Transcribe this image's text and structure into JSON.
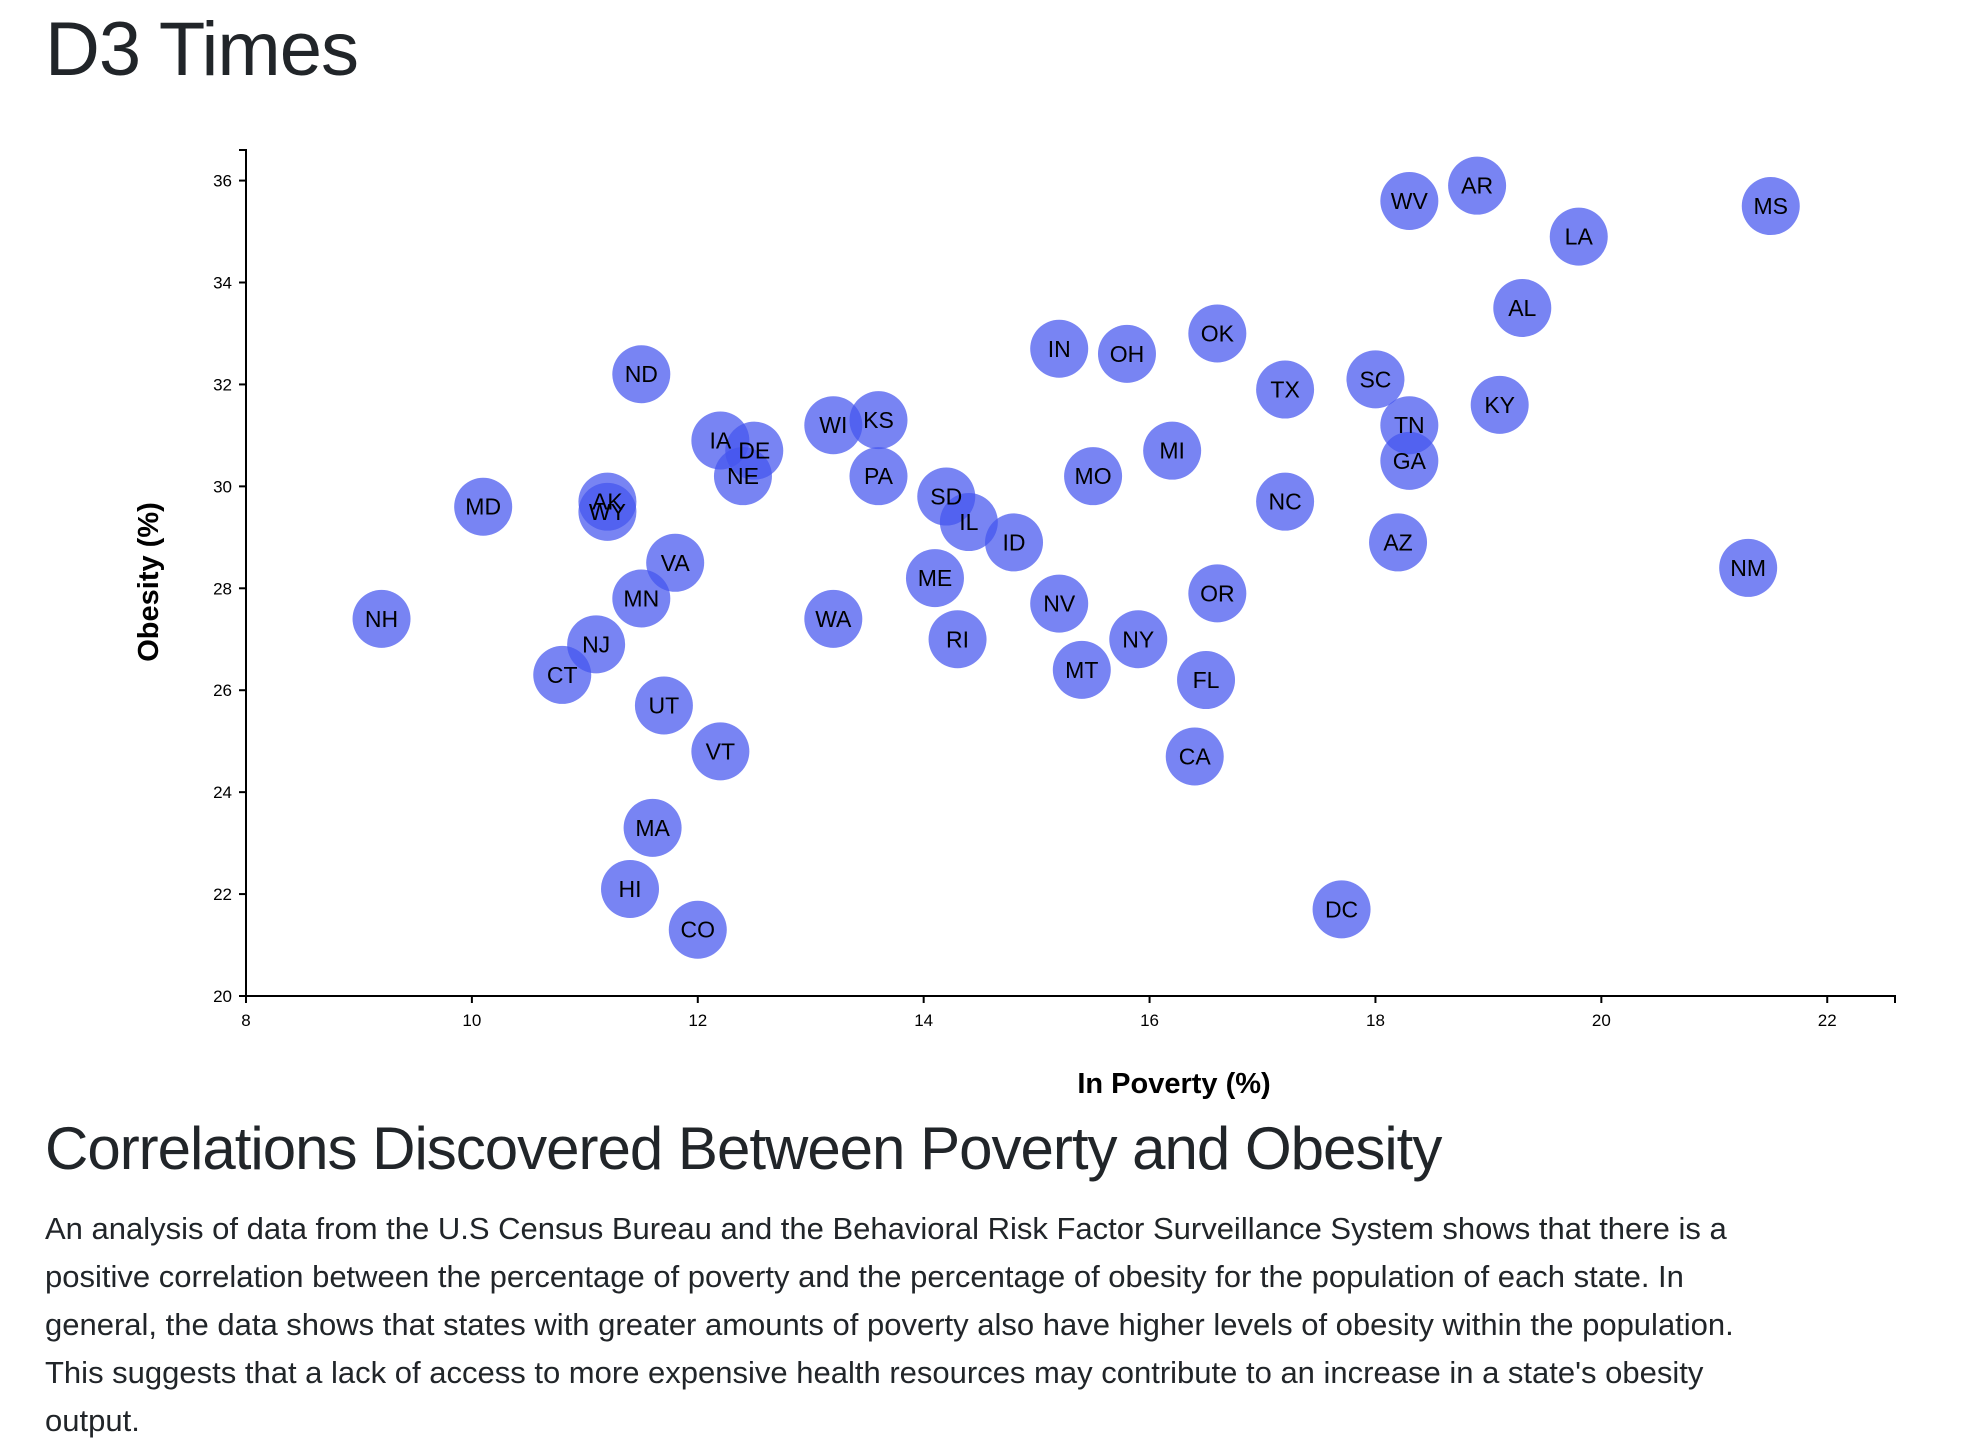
{
  "page": {
    "title": "D3 Times",
    "section_heading": "Correlations Discovered Between Poverty and Obesity",
    "section_text": "An analysis of data from the U.S Census Bureau and the Behavioral Risk Factor Surveillance System shows that there is a positive correlation between the percentage of poverty and the percentage of obesity for the population of each state. In general, the data shows that states with greater amounts of poverty also have higher levels of obesity within the population. This suggests that a lack of access to more expensive health resources may contribute to an increase in a state's obesity output."
  },
  "colors": {
    "marker": "#4455ee",
    "axis": "#000000",
    "text": "#212529"
  },
  "chart_data": {
    "type": "scatter",
    "xlabel": "In Poverty (%)",
    "ylabel": "Obesity (%)",
    "xlim": [
      8,
      22.6
    ],
    "ylim": [
      20,
      36.6
    ],
    "xticks": [
      8,
      10,
      12,
      14,
      16,
      18,
      20,
      22
    ],
    "yticks": [
      20,
      22,
      24,
      26,
      28,
      30,
      32,
      34,
      36
    ],
    "grid": false,
    "points": [
      {
        "abbr": "NH",
        "x": 9.2,
        "y": 27.4
      },
      {
        "abbr": "MD",
        "x": 10.1,
        "y": 29.6
      },
      {
        "abbr": "CT",
        "x": 10.8,
        "y": 26.3
      },
      {
        "abbr": "NJ",
        "x": 11.1,
        "y": 26.9
      },
      {
        "abbr": "HI",
        "x": 11.4,
        "y": 22.1
      },
      {
        "abbr": "AK",
        "x": 11.2,
        "y": 29.7
      },
      {
        "abbr": "WY",
        "x": 11.2,
        "y": 29.5
      },
      {
        "abbr": "MN",
        "x": 11.5,
        "y": 27.8
      },
      {
        "abbr": "ND",
        "x": 11.5,
        "y": 32.2
      },
      {
        "abbr": "MA",
        "x": 11.6,
        "y": 23.3
      },
      {
        "abbr": "UT",
        "x": 11.7,
        "y": 25.7
      },
      {
        "abbr": "VA",
        "x": 11.8,
        "y": 28.5
      },
      {
        "abbr": "CO",
        "x": 12.0,
        "y": 21.3
      },
      {
        "abbr": "IA",
        "x": 12.2,
        "y": 30.9
      },
      {
        "abbr": "VT",
        "x": 12.2,
        "y": 24.8
      },
      {
        "abbr": "NE",
        "x": 12.4,
        "y": 30.2
      },
      {
        "abbr": "DE",
        "x": 12.5,
        "y": 30.7
      },
      {
        "abbr": "WI",
        "x": 13.2,
        "y": 31.2
      },
      {
        "abbr": "WA",
        "x": 13.2,
        "y": 27.4
      },
      {
        "abbr": "KS",
        "x": 13.6,
        "y": 31.3
      },
      {
        "abbr": "PA",
        "x": 13.6,
        "y": 30.2
      },
      {
        "abbr": "ME",
        "x": 14.1,
        "y": 28.2
      },
      {
        "abbr": "SD",
        "x": 14.2,
        "y": 29.8
      },
      {
        "abbr": "RI",
        "x": 14.3,
        "y": 27.0
      },
      {
        "abbr": "IL",
        "x": 14.4,
        "y": 29.3
      },
      {
        "abbr": "ID",
        "x": 14.8,
        "y": 28.9
      },
      {
        "abbr": "IN",
        "x": 15.2,
        "y": 32.7
      },
      {
        "abbr": "NV",
        "x": 15.2,
        "y": 27.7
      },
      {
        "abbr": "MT",
        "x": 15.4,
        "y": 26.4
      },
      {
        "abbr": "MO",
        "x": 15.5,
        "y": 30.2
      },
      {
        "abbr": "OH",
        "x": 15.8,
        "y": 32.6
      },
      {
        "abbr": "NY",
        "x": 15.9,
        "y": 27.0
      },
      {
        "abbr": "MI",
        "x": 16.2,
        "y": 30.7
      },
      {
        "abbr": "CA",
        "x": 16.4,
        "y": 24.7
      },
      {
        "abbr": "FL",
        "x": 16.5,
        "y": 26.2
      },
      {
        "abbr": "OK",
        "x": 16.6,
        "y": 33.0
      },
      {
        "abbr": "OR",
        "x": 16.6,
        "y": 27.9
      },
      {
        "abbr": "TX",
        "x": 17.2,
        "y": 31.9
      },
      {
        "abbr": "NC",
        "x": 17.2,
        "y": 29.7
      },
      {
        "abbr": "DC",
        "x": 17.7,
        "y": 21.7
      },
      {
        "abbr": "SC",
        "x": 18.0,
        "y": 32.1
      },
      {
        "abbr": "AZ",
        "x": 18.2,
        "y": 28.9
      },
      {
        "abbr": "TN",
        "x": 18.3,
        "y": 31.2
      },
      {
        "abbr": "GA",
        "x": 18.3,
        "y": 30.5
      },
      {
        "abbr": "WV",
        "x": 18.3,
        "y": 35.6
      },
      {
        "abbr": "AR",
        "x": 18.9,
        "y": 35.9
      },
      {
        "abbr": "KY",
        "x": 19.1,
        "y": 31.6
      },
      {
        "abbr": "AL",
        "x": 19.3,
        "y": 33.5
      },
      {
        "abbr": "LA",
        "x": 19.8,
        "y": 34.9
      },
      {
        "abbr": "NM",
        "x": 21.3,
        "y": 28.4
      },
      {
        "abbr": "MS",
        "x": 21.5,
        "y": 35.5
      }
    ]
  }
}
